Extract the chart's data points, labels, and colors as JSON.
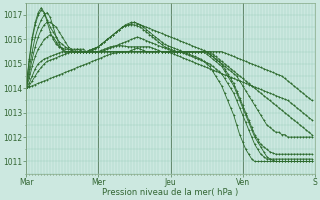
{
  "background_color": "#cce8e0",
  "grid_color": "#99ccbb",
  "line_color": "#2d6a2d",
  "marker_color": "#2d6a2d",
  "xlim": [
    0,
    96
  ],
  "ylim": [
    1010.5,
    1017.5
  ],
  "yticks": [
    1011,
    1012,
    1013,
    1014,
    1015,
    1016,
    1017
  ],
  "xtick_labels": [
    "Mar",
    "Mer",
    "Jeu",
    "Ven",
    "S"
  ],
  "xtick_positions": [
    0,
    24,
    48,
    72,
    96
  ],
  "xlabel": "Pression niveau de la mer( hPa )",
  "series": [
    [
      1014.0,
      1014.05,
      1014.1,
      1014.15,
      1014.2,
      1014.25,
      1014.3,
      1014.35,
      1014.4,
      1014.45,
      1014.5,
      1014.55,
      1014.6,
      1014.65,
      1014.7,
      1014.75,
      1014.8,
      1014.85,
      1014.9,
      1014.95,
      1015.0,
      1015.05,
      1015.1,
      1015.15,
      1015.2,
      1015.25,
      1015.3,
      1015.35,
      1015.4,
      1015.43,
      1015.45,
      1015.47,
      1015.48,
      1015.49,
      1015.5,
      1015.5,
      1015.5,
      1015.5,
      1015.5,
      1015.5,
      1015.5,
      1015.5,
      1015.5,
      1015.5,
      1015.5,
      1015.5,
      1015.5,
      1015.48,
      1015.45,
      1015.4,
      1015.35,
      1015.3,
      1015.25,
      1015.2,
      1015.15,
      1015.1,
      1015.05,
      1015.0,
      1014.95,
      1014.9,
      1014.85,
      1014.8,
      1014.75,
      1014.7,
      1014.65,
      1014.6,
      1014.55,
      1014.5,
      1014.45,
      1014.4,
      1014.35,
      1014.3,
      1014.25,
      1014.2,
      1014.15,
      1014.1,
      1014.05,
      1014.0,
      1013.95,
      1013.9,
      1013.85,
      1013.8,
      1013.75,
      1013.7,
      1013.65,
      1013.6,
      1013.55,
      1013.5,
      1013.4,
      1013.3,
      1013.2,
      1013.1,
      1013.0,
      1012.9,
      1012.8,
      1012.7
    ],
    [
      1014.0,
      1014.1,
      1014.3,
      1014.5,
      1014.7,
      1014.85,
      1015.0,
      1015.1,
      1015.15,
      1015.2,
      1015.25,
      1015.3,
      1015.35,
      1015.4,
      1015.45,
      1015.5,
      1015.5,
      1015.5,
      1015.5,
      1015.5,
      1015.5,
      1015.5,
      1015.5,
      1015.5,
      1015.5,
      1015.5,
      1015.5,
      1015.5,
      1015.5,
      1015.5,
      1015.5,
      1015.5,
      1015.5,
      1015.5,
      1015.5,
      1015.5,
      1015.5,
      1015.5,
      1015.5,
      1015.5,
      1015.5,
      1015.5,
      1015.5,
      1015.5,
      1015.5,
      1015.5,
      1015.5,
      1015.5,
      1015.5,
      1015.5,
      1015.5,
      1015.5,
      1015.5,
      1015.5,
      1015.5,
      1015.5,
      1015.5,
      1015.5,
      1015.5,
      1015.5,
      1015.5,
      1015.5,
      1015.5,
      1015.5,
      1015.5,
      1015.5,
      1015.45,
      1015.4,
      1015.35,
      1015.3,
      1015.25,
      1015.2,
      1015.15,
      1015.1,
      1015.05,
      1015.0,
      1014.95,
      1014.9,
      1014.85,
      1014.8,
      1014.75,
      1014.7,
      1014.65,
      1014.6,
      1014.55,
      1014.5,
      1014.4,
      1014.3,
      1014.2,
      1014.1,
      1014.0,
      1013.9,
      1013.8,
      1013.7,
      1013.6,
      1013.5
    ],
    [
      1014.0,
      1014.2,
      1014.5,
      1014.8,
      1015.0,
      1015.1,
      1015.2,
      1015.25,
      1015.3,
      1015.35,
      1015.4,
      1015.45,
      1015.5,
      1015.5,
      1015.5,
      1015.5,
      1015.5,
      1015.5,
      1015.5,
      1015.5,
      1015.5,
      1015.5,
      1015.5,
      1015.5,
      1015.5,
      1015.5,
      1015.5,
      1015.5,
      1015.5,
      1015.5,
      1015.5,
      1015.5,
      1015.5,
      1015.5,
      1015.5,
      1015.55,
      1015.6,
      1015.65,
      1015.6,
      1015.55,
      1015.5,
      1015.5,
      1015.5,
      1015.5,
      1015.5,
      1015.5,
      1015.5,
      1015.5,
      1015.5,
      1015.5,
      1015.5,
      1015.5,
      1015.5,
      1015.5,
      1015.5,
      1015.5,
      1015.5,
      1015.5,
      1015.5,
      1015.5,
      1015.5,
      1015.5,
      1015.4,
      1015.3,
      1015.2,
      1015.1,
      1015.0,
      1014.9,
      1014.8,
      1014.7,
      1014.6,
      1014.5,
      1014.4,
      1014.3,
      1014.2,
      1014.1,
      1014.0,
      1013.9,
      1013.8,
      1013.7,
      1013.6,
      1013.5,
      1013.4,
      1013.3,
      1013.2,
      1013.1,
      1013.0,
      1012.9,
      1012.8,
      1012.7,
      1012.6,
      1012.5,
      1012.4,
      1012.3,
      1012.2,
      1012.1
    ],
    [
      1014.0,
      1014.4,
      1014.9,
      1015.3,
      1015.6,
      1015.8,
      1016.0,
      1016.1,
      1016.2,
      1016.1,
      1015.9,
      1015.7,
      1015.6,
      1015.5,
      1015.5,
      1015.5,
      1015.5,
      1015.6,
      1015.6,
      1015.6,
      1015.5,
      1015.5,
      1015.5,
      1015.5,
      1015.5,
      1015.55,
      1015.6,
      1015.65,
      1015.7,
      1015.72,
      1015.74,
      1015.75,
      1015.74,
      1015.72,
      1015.7,
      1015.7,
      1015.7,
      1015.7,
      1015.7,
      1015.7,
      1015.7,
      1015.7,
      1015.65,
      1015.6,
      1015.55,
      1015.5,
      1015.5,
      1015.5,
      1015.5,
      1015.5,
      1015.5,
      1015.5,
      1015.5,
      1015.5,
      1015.5,
      1015.5,
      1015.5,
      1015.5,
      1015.5,
      1015.5,
      1015.5,
      1015.4,
      1015.3,
      1015.2,
      1015.1,
      1015.0,
      1014.9,
      1014.8,
      1014.7,
      1014.6,
      1014.5,
      1014.3,
      1014.1,
      1013.9,
      1013.7,
      1013.5,
      1013.3,
      1013.1,
      1012.9,
      1012.7,
      1012.5,
      1012.4,
      1012.3,
      1012.2,
      1012.2,
      1012.1,
      1012.1,
      1012.0,
      1012.0,
      1012.0,
      1012.0,
      1012.0,
      1012.0,
      1012.0,
      1012.0,
      1012.0
    ],
    [
      1014.0,
      1014.6,
      1015.2,
      1015.7,
      1016.1,
      1016.4,
      1016.6,
      1016.7,
      1016.7,
      1016.6,
      1016.5,
      1016.3,
      1016.1,
      1015.9,
      1015.7,
      1015.6,
      1015.5,
      1015.5,
      1015.5,
      1015.5,
      1015.5,
      1015.5,
      1015.5,
      1015.5,
      1015.5,
      1015.5,
      1015.55,
      1015.6,
      1015.65,
      1015.7,
      1015.75,
      1015.8,
      1015.85,
      1015.9,
      1015.95,
      1016.0,
      1016.05,
      1016.1,
      1016.05,
      1016.0,
      1015.95,
      1015.9,
      1015.85,
      1015.8,
      1015.75,
      1015.7,
      1015.65,
      1015.6,
      1015.55,
      1015.5,
      1015.5,
      1015.5,
      1015.5,
      1015.5,
      1015.5,
      1015.5,
      1015.5,
      1015.5,
      1015.5,
      1015.5,
      1015.4,
      1015.3,
      1015.2,
      1015.1,
      1015.0,
      1014.9,
      1014.7,
      1014.5,
      1014.3,
      1014.1,
      1013.8,
      1013.5,
      1013.2,
      1012.9,
      1012.6,
      1012.3,
      1012.0,
      1011.8,
      1011.6,
      1011.4,
      1011.2,
      1011.1,
      1011.05,
      1011.0,
      1011.0,
      1011.0,
      1011.0,
      1011.0,
      1011.0,
      1011.0,
      1011.0,
      1011.0,
      1011.0,
      1011.0,
      1011.0,
      1011.0
    ],
    [
      1014.0,
      1014.8,
      1015.5,
      1016.1,
      1016.5,
      1016.8,
      1017.0,
      1017.1,
      1016.9,
      1016.5,
      1016.1,
      1015.8,
      1015.6,
      1015.5,
      1015.5,
      1015.5,
      1015.5,
      1015.5,
      1015.5,
      1015.5,
      1015.5,
      1015.55,
      1015.6,
      1015.65,
      1015.7,
      1015.8,
      1015.9,
      1016.0,
      1016.1,
      1016.2,
      1016.3,
      1016.4,
      1016.5,
      1016.55,
      1016.6,
      1016.6,
      1016.6,
      1016.55,
      1016.5,
      1016.4,
      1016.3,
      1016.2,
      1016.1,
      1016.0,
      1015.9,
      1015.8,
      1015.7,
      1015.65,
      1015.6,
      1015.55,
      1015.5,
      1015.5,
      1015.45,
      1015.4,
      1015.35,
      1015.3,
      1015.25,
      1015.2,
      1015.15,
      1015.1,
      1015.05,
      1015.0,
      1014.9,
      1014.8,
      1014.7,
      1014.6,
      1014.4,
      1014.2,
      1014.0,
      1013.8,
      1013.5,
      1013.2,
      1012.9,
      1012.6,
      1012.3,
      1012.0,
      1011.7,
      1011.5,
      1011.3,
      1011.2,
      1011.1,
      1011.1,
      1011.1,
      1011.1,
      1011.1,
      1011.1,
      1011.1,
      1011.1,
      1011.1,
      1011.1,
      1011.1,
      1011.1,
      1011.1,
      1011.1,
      1011.1,
      1011.1
    ],
    [
      1014.1,
      1015.1,
      1016.0,
      1016.6,
      1017.0,
      1017.2,
      1017.1,
      1016.8,
      1016.5,
      1016.3,
      1016.1,
      1015.9,
      1015.8,
      1015.7,
      1015.6,
      1015.55,
      1015.5,
      1015.5,
      1015.5,
      1015.5,
      1015.5,
      1015.55,
      1015.6,
      1015.65,
      1015.7,
      1015.8,
      1015.9,
      1016.0,
      1016.1,
      1016.2,
      1016.3,
      1016.4,
      1016.5,
      1016.55,
      1016.6,
      1016.65,
      1016.7,
      1016.65,
      1016.6,
      1016.55,
      1016.5,
      1016.45,
      1016.4,
      1016.35,
      1016.3,
      1016.25,
      1016.2,
      1016.15,
      1016.1,
      1016.05,
      1016.0,
      1015.95,
      1015.9,
      1015.85,
      1015.8,
      1015.75,
      1015.7,
      1015.65,
      1015.6,
      1015.55,
      1015.5,
      1015.4,
      1015.3,
      1015.2,
      1015.1,
      1015.0,
      1014.8,
      1014.6,
      1014.4,
      1014.2,
      1013.9,
      1013.6,
      1013.3,
      1013.0,
      1012.7,
      1012.4,
      1012.1,
      1011.9,
      1011.7,
      1011.6,
      1011.5,
      1011.4,
      1011.35,
      1011.3,
      1011.3,
      1011.3,
      1011.3,
      1011.3,
      1011.3,
      1011.3,
      1011.3,
      1011.3,
      1011.3,
      1011.3,
      1011.3,
      1011.3
    ],
    [
      1014.1,
      1015.2,
      1016.1,
      1016.7,
      1017.1,
      1017.3,
      1017.1,
      1016.7,
      1016.3,
      1016.0,
      1015.8,
      1015.7,
      1015.65,
      1015.6,
      1015.6,
      1015.6,
      1015.6,
      1015.6,
      1015.55,
      1015.5,
      1015.5,
      1015.5,
      1015.55,
      1015.6,
      1015.7,
      1015.8,
      1015.9,
      1016.0,
      1016.1,
      1016.2,
      1016.3,
      1016.4,
      1016.5,
      1016.6,
      1016.65,
      1016.7,
      1016.7,
      1016.65,
      1016.6,
      1016.5,
      1016.4,
      1016.3,
      1016.2,
      1016.1,
      1016.0,
      1015.9,
      1015.8,
      1015.75,
      1015.7,
      1015.65,
      1015.6,
      1015.55,
      1015.5,
      1015.45,
      1015.4,
      1015.35,
      1015.3,
      1015.25,
      1015.2,
      1015.1,
      1015.0,
      1014.9,
      1014.7,
      1014.5,
      1014.3,
      1014.1,
      1013.8,
      1013.5,
      1013.2,
      1012.9,
      1012.5,
      1012.1,
      1011.8,
      1011.5,
      1011.3,
      1011.1,
      1011.0,
      1011.0,
      1011.0,
      1011.0,
      1011.0,
      1011.0,
      1011.0,
      1011.0,
      1011.0,
      1011.0,
      1011.0,
      1011.0,
      1011.0,
      1011.0,
      1011.0,
      1011.0,
      1011.0,
      1011.0,
      1011.0,
      1011.0
    ]
  ]
}
